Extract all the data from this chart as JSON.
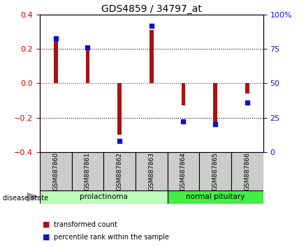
{
  "title": "GDS4859 / 34797_at",
  "samples": [
    "GSM887860",
    "GSM887861",
    "GSM887862",
    "GSM887863",
    "GSM887864",
    "GSM887865",
    "GSM887866"
  ],
  "red_bars": [
    0.26,
    0.2,
    -0.3,
    0.31,
    -0.13,
    -0.23,
    -0.06
  ],
  "blue_squares": [
    83,
    76,
    8,
    92,
    22,
    20,
    36
  ],
  "ylim_left": [
    -0.4,
    0.4
  ],
  "ylim_right": [
    0,
    100
  ],
  "left_yticks": [
    -0.4,
    -0.2,
    0.0,
    0.2,
    0.4
  ],
  "right_yticks": [
    0,
    25,
    50,
    75,
    100
  ],
  "right_yticklabels": [
    "0",
    "25",
    "50",
    "75",
    "100%"
  ],
  "bar_color": "#AA1111",
  "square_color": "#1111CC",
  "dot_line_color": "#CC0000",
  "bg_color": "#FFFFFF",
  "plot_bg": "#FFFFFF",
  "group1_label": "prolactinoma",
  "group2_label": "normal pituitary",
  "group1_color": "#BBFFBB",
  "group2_color": "#44EE44",
  "disease_state_label": "disease state",
  "legend_red": "transformed count",
  "legend_blue": "percentile rank within the sample",
  "bar_width": 0.12,
  "title_size": 10,
  "tick_label_size": 8
}
